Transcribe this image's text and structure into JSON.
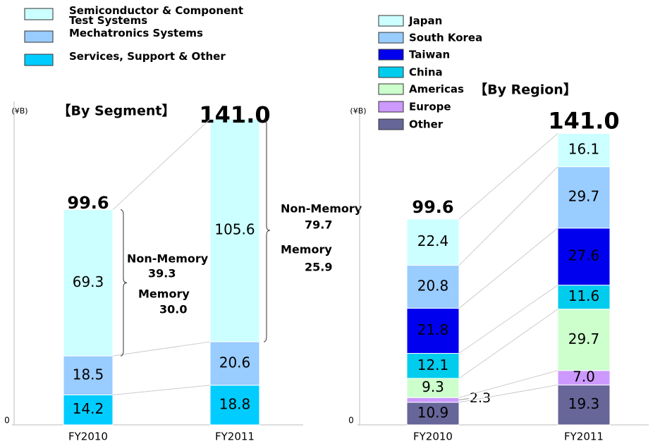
{
  "chart_data": [
    {
      "type": "stacked_bar",
      "title": "【By Segment】",
      "y_label": "(¥B)",
      "categories": [
        "FY2010",
        "FY2011"
      ],
      "series": [
        {
          "name": "Semiconductor & Component Test Systems",
          "color": "#ccffff",
          "values": [
            69.3,
            105.6
          ]
        },
        {
          "name": "Mechatronics Systems",
          "color": "#99ccff",
          "values": [
            18.5,
            20.6
          ]
        },
        {
          "name": "Services, Support & Other",
          "color": "#00ccff",
          "values": [
            14.2,
            18.8
          ]
        }
      ],
      "totals": {
        "values": [
          99.6,
          141.0
        ],
        "value_labels": [
          "99.6",
          "141.0"
        ]
      },
      "breakdown": [
        {
          "name": "Non-Memory",
          "values": [
            39.3,
            79.7
          ]
        },
        {
          "name": "Memory",
          "values": [
            30.0,
            25.9
          ],
          "value_labels": [
            "30.0",
            "25.9"
          ]
        }
      ],
      "ylim": [
        0,
        150
      ],
      "yticks": [
        0
      ]
    },
    {
      "type": "stacked_bar",
      "title": "【By Region】",
      "y_label": "(¥B)",
      "categories": [
        "FY2010",
        "FY2011"
      ],
      "series": [
        {
          "name": "Japan",
          "color": "#ccffff",
          "values": [
            22.4,
            16.1
          ]
        },
        {
          "name": "South Korea",
          "color": "#99ccff",
          "values": [
            20.8,
            29.7
          ]
        },
        {
          "name": "Taiwan",
          "color": "#0000ee",
          "values": [
            21.8,
            27.6
          ]
        },
        {
          "name": "China",
          "color": "#00ccee",
          "values": [
            12.1,
            11.6
          ]
        },
        {
          "name": "Americas",
          "color": "#ccffcc",
          "values": [
            9.3,
            29.7
          ]
        },
        {
          "name": "Europe",
          "color": "#cc99ff",
          "values": [
            2.3,
            7.0
          ],
          "value_labels": [
            "2.3",
            "7.0"
          ]
        },
        {
          "name": "Other",
          "color": "#666699",
          "values": [
            10.9,
            19.3
          ]
        }
      ],
      "totals": {
        "values": [
          99.6,
          141.0
        ],
        "value_labels": [
          "99.6",
          "141.0"
        ]
      },
      "ylim": [
        0,
        150
      ],
      "yticks": [
        0
      ]
    }
  ]
}
